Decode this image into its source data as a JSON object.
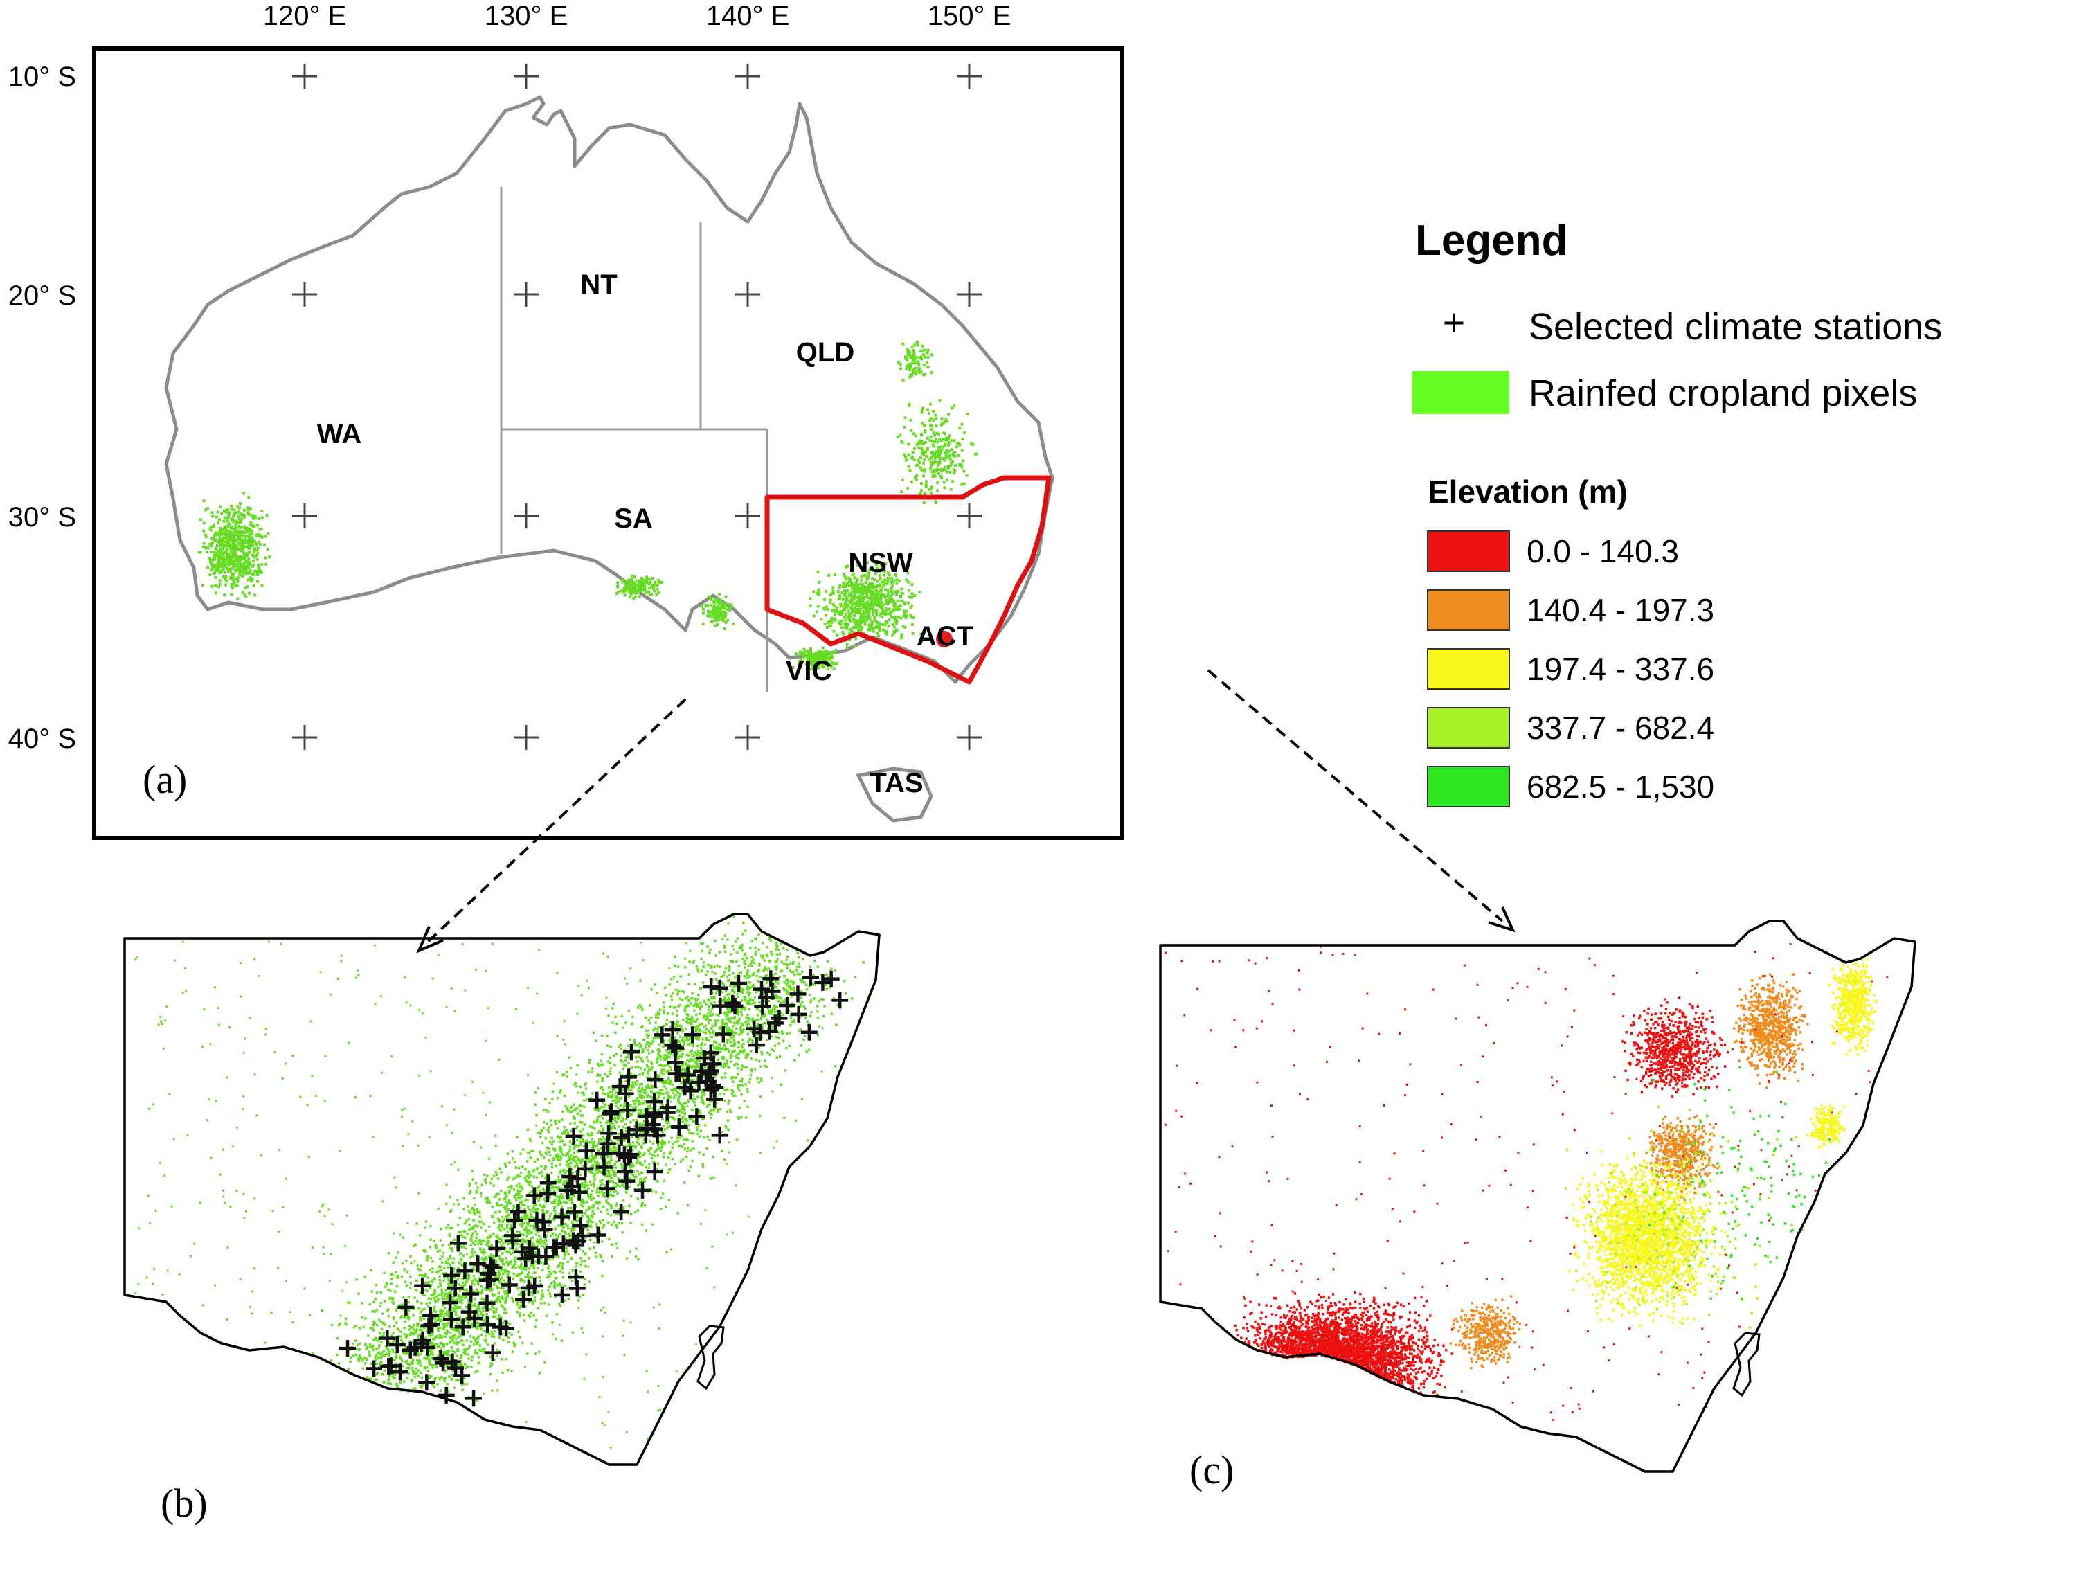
{
  "panel_a": {
    "lon_labels": [
      "120° E",
      "130° E",
      "140° E",
      "150° E"
    ],
    "lat_labels": [
      "10° S",
      "20° S",
      "30° S",
      "40° S"
    ],
    "states": [
      "WA",
      "NT",
      "QLD",
      "SA",
      "NSW",
      "ACT",
      "VIC",
      "TAS"
    ],
    "label": "(a)"
  },
  "panel_b": {
    "label": "(b)"
  },
  "panel_c": {
    "label": "(c)"
  },
  "legend": {
    "title": "Legend",
    "items": [
      {
        "symbol": "+",
        "label": "Selected climate stations"
      },
      {
        "color": "#66ff22",
        "label": "Rainfed cropland pixels"
      }
    ],
    "elevation_title": "Elevation (m)",
    "elevation": [
      {
        "color": "#ee1111",
        "label": "0.0 - 140.3"
      },
      {
        "color": "#f08c1e",
        "label": "140.4 - 197.3"
      },
      {
        "color": "#f7f719",
        "label": "197.4 - 337.6"
      },
      {
        "color": "#a6f025",
        "label": "337.7 - 682.4"
      },
      {
        "color": "#2ee620",
        "label": "682.5 - 1,530"
      }
    ]
  },
  "colors": {
    "coast": "#8c8c8c",
    "state_border": "#999999",
    "nsw_outline": "#dd1111",
    "cropland": "#66dd22",
    "act_marker": "#e02020"
  }
}
